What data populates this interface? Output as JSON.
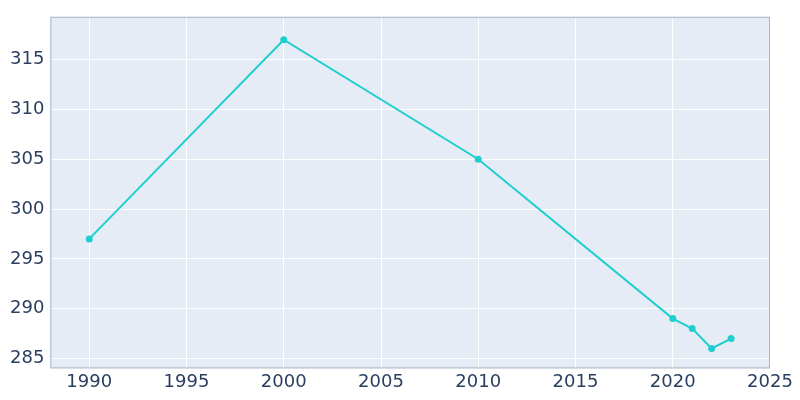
{
  "chart_data": {
    "type": "line",
    "x": [
      1990,
      2000,
      2010,
      2020,
      2021,
      2022,
      2023
    ],
    "values": [
      297,
      317,
      305,
      289,
      288,
      286,
      287
    ],
    "color": "#1fcfd0",
    "marker": "circle",
    "xlim": [
      1988,
      2025
    ],
    "xticks": [
      1990,
      1995,
      2000,
      2005,
      2010,
      2015,
      2020,
      2025
    ],
    "ylim": [
      284,
      319.3
    ],
    "yticks": [
      285,
      290,
      295,
      300,
      305,
      310,
      315
    ],
    "grid": true
  }
}
